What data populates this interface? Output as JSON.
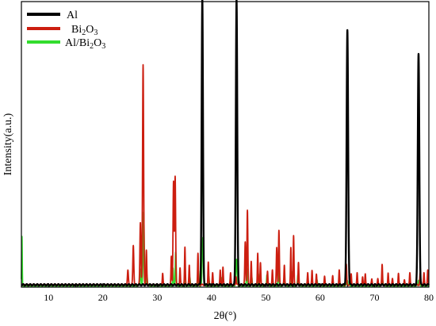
{
  "chart_data": {
    "type": "line",
    "title": "",
    "xlabel": "2θ(°)",
    "ylabel": "Intensity(a.u.)",
    "xlim": [
      5,
      80
    ],
    "ylim": [
      0,
      100
    ],
    "x_ticks": [
      10,
      20,
      30,
      40,
      50,
      60,
      70,
      80
    ],
    "y_ticks_shown": false,
    "legend_position": "top-left",
    "series": [
      {
        "name": "Al",
        "color": "#000000",
        "baseline": 0.8,
        "peaks": [
          [
            38.3,
            100,
            0.12
          ],
          [
            44.6,
            100,
            0.13
          ],
          [
            65.0,
            89,
            0.14
          ],
          [
            78.1,
            81,
            0.14
          ]
        ]
      },
      {
        "name": "Bi2O3",
        "color": "#cc1e10",
        "baseline": 0.8,
        "peaks": [
          [
            24.6,
            5,
            0.09
          ],
          [
            25.6,
            14,
            0.09
          ],
          [
            26.9,
            22,
            0.09
          ],
          [
            27.4,
            77,
            0.1
          ],
          [
            28.0,
            12,
            0.08
          ],
          [
            31.0,
            4,
            0.07
          ],
          [
            32.6,
            10,
            0.07
          ],
          [
            33.0,
            36,
            0.09
          ],
          [
            33.3,
            38,
            0.09
          ],
          [
            34.2,
            6,
            0.07
          ],
          [
            35.1,
            13,
            0.07
          ],
          [
            35.9,
            7,
            0.07
          ],
          [
            37.5,
            11,
            0.07
          ],
          [
            39.4,
            8,
            0.07
          ],
          [
            40.2,
            4,
            0.07
          ],
          [
            41.6,
            5,
            0.07
          ],
          [
            42.1,
            6,
            0.07
          ],
          [
            43.5,
            4,
            0.07
          ],
          [
            44.5,
            3,
            0.07
          ],
          [
            46.2,
            15,
            0.08
          ],
          [
            46.6,
            26,
            0.08
          ],
          [
            47.3,
            8,
            0.07
          ],
          [
            48.5,
            11,
            0.07
          ],
          [
            49.0,
            8,
            0.07
          ],
          [
            50.3,
            5,
            0.07
          ],
          [
            51.2,
            5,
            0.07
          ],
          [
            52.0,
            13,
            0.08
          ],
          [
            52.4,
            19,
            0.08
          ],
          [
            53.4,
            7,
            0.07
          ],
          [
            54.6,
            13,
            0.07
          ],
          [
            55.1,
            17,
            0.07
          ],
          [
            56.0,
            8,
            0.07
          ],
          [
            57.7,
            4,
            0.07
          ],
          [
            58.5,
            5,
            0.07
          ],
          [
            59.3,
            4,
            0.07
          ],
          [
            60.8,
            3,
            0.07
          ],
          [
            62.3,
            3,
            0.07
          ],
          [
            63.5,
            5,
            0.07
          ],
          [
            64.8,
            7,
            0.07
          ],
          [
            65.7,
            4,
            0.07
          ],
          [
            66.8,
            4,
            0.07
          ],
          [
            67.8,
            3,
            0.07
          ],
          [
            68.3,
            4,
            0.07
          ],
          [
            69.5,
            2,
            0.07
          ],
          [
            70.6,
            2,
            0.07
          ],
          [
            71.4,
            7,
            0.07
          ],
          [
            72.5,
            4,
            0.07
          ],
          [
            73.3,
            2,
            0.07
          ],
          [
            74.4,
            4,
            0.07
          ],
          [
            75.5,
            2,
            0.07
          ],
          [
            76.5,
            4,
            0.07
          ],
          [
            78.4,
            4,
            0.07
          ],
          [
            79.1,
            4,
            0.07
          ],
          [
            79.8,
            5,
            0.07
          ]
        ]
      },
      {
        "name": "Al/Bi2O3",
        "color": "#33dd2e",
        "baseline": 0.5,
        "peaks": [
          [
            5.1,
            17,
            0.05
          ],
          [
            26.9,
            6,
            0.09
          ],
          [
            27.5,
            26,
            0.1
          ],
          [
            28.1,
            4,
            0.08
          ],
          [
            32.9,
            6,
            0.07
          ],
          [
            33.4,
            12,
            0.08
          ],
          [
            35.1,
            3,
            0.07
          ],
          [
            36.0,
            3,
            0.07
          ],
          [
            37.6,
            5,
            0.07
          ],
          [
            38.4,
            17,
            0.12
          ],
          [
            39.5,
            3,
            0.07
          ],
          [
            41.8,
            3,
            0.07
          ],
          [
            44.6,
            9,
            0.12
          ],
          [
            46.5,
            6,
            0.08
          ],
          [
            47.4,
            3,
            0.07
          ],
          [
            48.6,
            4,
            0.07
          ],
          [
            50.2,
            4,
            0.07
          ],
          [
            52.3,
            6,
            0.08
          ],
          [
            53.4,
            3,
            0.07
          ],
          [
            54.8,
            5,
            0.07
          ],
          [
            55.9,
            4,
            0.07
          ],
          [
            57.7,
            3,
            0.07
          ],
          [
            59.4,
            2,
            0.07
          ],
          [
            65.0,
            2,
            0.1
          ],
          [
            71.5,
            2,
            0.07
          ],
          [
            78.1,
            2,
            0.1
          ]
        ]
      }
    ]
  },
  "legend": {
    "items": [
      {
        "base": "Al",
        "parts": [
          [
            "Al",
            ""
          ]
        ]
      },
      {
        "base": "Bi2O3",
        "parts": [
          [
            "Bi",
            ""
          ],
          [
            "2",
            "sub"
          ],
          [
            "O",
            ""
          ],
          [
            "3",
            "sub"
          ]
        ]
      },
      {
        "base": "Al/Bi2O3",
        "parts": [
          [
            "Al/Bi",
            ""
          ],
          [
            "2",
            "sub"
          ],
          [
            "O",
            ""
          ],
          [
            "3",
            "sub"
          ]
        ]
      }
    ]
  }
}
